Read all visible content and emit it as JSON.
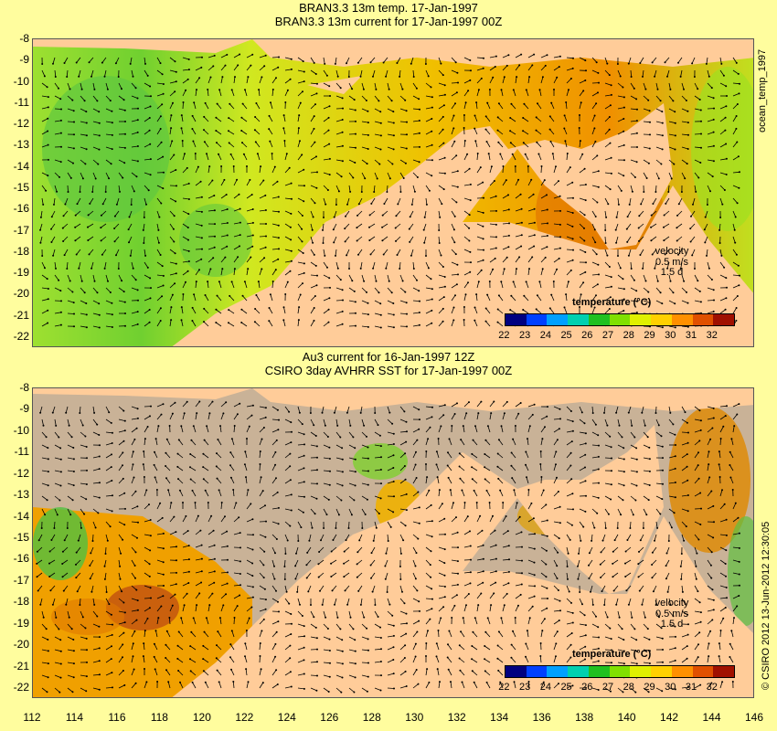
{
  "top_panel": {
    "title_line1": "BRAN3.3 13m temp. 17-Jan-1997",
    "title_line2": "BRAN3.3 13m current for 17-Jan-1997 00Z",
    "velocity_label": "velocity",
    "velocity_speed": "0.5 m/s",
    "velocity_time": "1.5 d",
    "colorbar_title": "temperature (°C)",
    "side_label": "ocean_temp_1997"
  },
  "bottom_panel": {
    "title_line1": "Au3 current for 16-Jan-1997 12Z",
    "title_line2": "CSIRO 3day AVHRR SST for 17-Jan-1997 00Z",
    "velocity_label": "velocity",
    "velocity_speed": "0.5 m/s",
    "velocity_time": "1.5 d",
    "colorbar_title": "temperature (°C)",
    "side_label": "© CSIRO 2012  13-Jun-2012 12:30:05"
  },
  "y_ticks": [
    "-8",
    "-9",
    "-10",
    "-11",
    "-12",
    "-13",
    "-14",
    "-15",
    "-16",
    "-17",
    "-18",
    "-19",
    "-20",
    "-21",
    "-22"
  ],
  "x_ticks": [
    "112",
    "114",
    "116",
    "118",
    "120",
    "122",
    "124",
    "126",
    "128",
    "130",
    "132",
    "134",
    "136",
    "138",
    "140",
    "142",
    "144",
    "146"
  ],
  "colorbar_ticks": [
    "22",
    "23",
    "24",
    "25",
    "26",
    "27",
    "28",
    "29",
    "30",
    "31",
    "32"
  ],
  "colors": {
    "background": "#fffd9e",
    "land": "#ffcc99",
    "no_data": "#c9b297",
    "colorbar": [
      "#000080",
      "#0040ff",
      "#00a0ff",
      "#00d0b0",
      "#20c020",
      "#80e000",
      "#e0f000",
      "#ffd000",
      "#ff9000",
      "#e05000",
      "#a01000"
    ]
  }
}
